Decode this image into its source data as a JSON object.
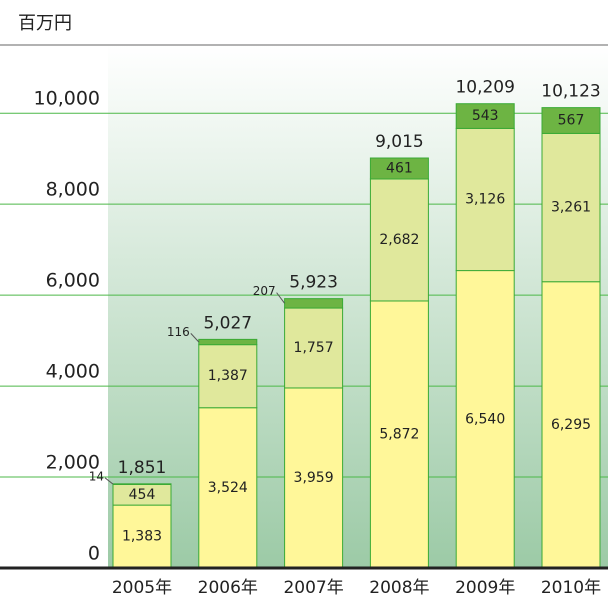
{
  "chart_data": {
    "type": "stacked_bar",
    "unit_label": "百万円",
    "categories": [
      "2005年",
      "2006年",
      "2007年",
      "2008年",
      "2009年",
      "2010年"
    ],
    "series": [
      {
        "color": "#fff799",
        "values": [
          1383,
          3524,
          3959,
          5872,
          6540,
          6295
        ],
        "value_labels": [
          "1,383",
          "3,524",
          "3,959",
          "5,872",
          "6,540",
          "6,295"
        ]
      },
      {
        "color": "#e0e89c",
        "values": [
          454,
          1387,
          1757,
          2682,
          3126,
          3261
        ],
        "value_labels": [
          "454",
          "1,387",
          "1,757",
          "2,682",
          "3,126",
          "3,261"
        ]
      },
      {
        "color": "#6db443",
        "values": [
          14,
          116,
          207,
          461,
          543,
          567
        ],
        "value_labels": [
          "14",
          "116",
          "207",
          "461",
          "543",
          "567"
        ]
      }
    ],
    "totals": [
      1851,
      5027,
      5923,
      9015,
      10209,
      10123
    ],
    "total_labels": [
      "1,851",
      "5,027",
      "5,923",
      "9,015",
      "10,209",
      "10,123"
    ],
    "ylim": [
      0,
      11500
    ],
    "yticks": [
      0,
      {
        "value": 2000,
        "label": "2,000"
      },
      {
        "value": 4000,
        "label": "4,000"
      },
      {
        "value": 6000,
        "label": "6,000"
      },
      {
        "value": 8000,
        "label": "8,000"
      },
      {
        "value": 10000,
        "label": "10,000"
      }
    ],
    "grid": true,
    "grid_color": "#4cb848"
  }
}
